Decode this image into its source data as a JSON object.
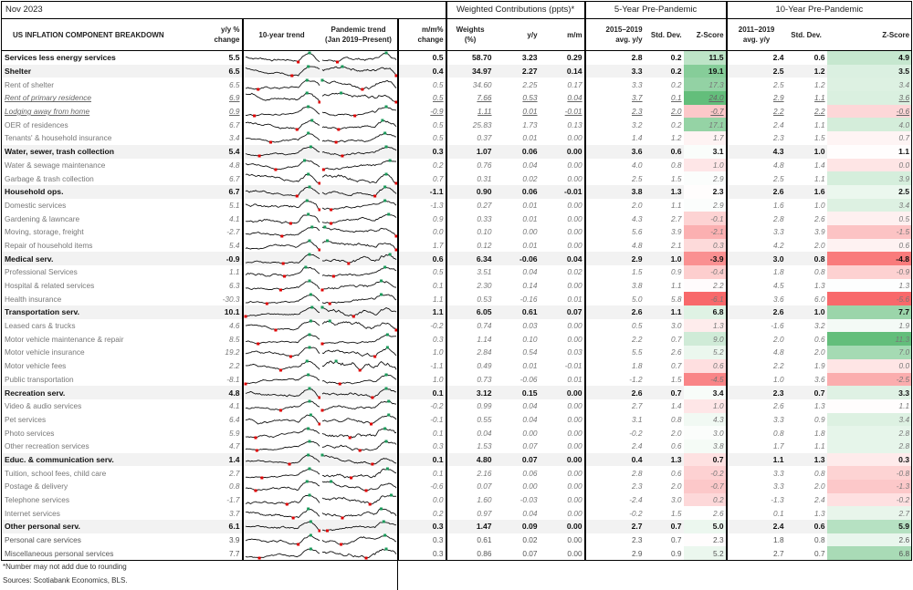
{
  "period": "Nov 2023",
  "headers": {
    "title": "US INFLATION COMPONENT BREAKDOWN",
    "yy_line1": "y/y %",
    "yy_line2": "change",
    "trend10": "10-year trend",
    "pandemic_line1": "Pandemic trend",
    "pandemic_line2": "(Jan 2019–Present)",
    "mm_line1": "m/m%",
    "mm_line2": "change",
    "weighted_group": "Weighted Contributions (ppts)*",
    "weights_line1": "Weights",
    "weights_line2": "(%)",
    "c_yy": "y/y",
    "c_mm": "m/m",
    "five_group": "5-Year Pre-Pandemic",
    "five_avg_line1": "2015–2019",
    "five_avg_line2": "avg. y/y",
    "std": "Std. Dev.",
    "z": "Z-Score",
    "ten_group": "10-Year Pre-Pandemic",
    "ten_avg_line1": "2011–2019",
    "ten_avg_line2": "avg. y/y"
  },
  "colors": {
    "z_pos": "#63be7b",
    "z_neg": "#f8696b",
    "spark_min": "#e00000",
    "spark_max": "#1a9a5a"
  },
  "rows": [
    {
      "t": "total",
      "name": "Services less energy services",
      "yy": "5.5",
      "mm": "0.5",
      "w": "58.70",
      "cy": "3.23",
      "cm": "0.29",
      "a5": "2.8",
      "s5": "0.2",
      "z5": "11.5",
      "a10": "2.4",
      "s10": "0.6",
      "z10": "4.9"
    },
    {
      "t": "cat",
      "name": "Shelter",
      "yy": "6.5",
      "mm": "0.4",
      "w": "34.97",
      "cy": "2.27",
      "cm": "0.14",
      "a5": "3.3",
      "s5": "0.2",
      "z5": "19.1",
      "a10": "2.5",
      "s10": "1.2",
      "z10": "3.5"
    },
    {
      "t": "sub",
      "name": "Rent of shelter",
      "yy": "6.5",
      "mm": "0.5",
      "w": "34.60",
      "cy": "2.25",
      "cm": "0.17",
      "a5": "3.3",
      "s5": "0.2",
      "z5": "17.3",
      "a10": "2.5",
      "s10": "1.2",
      "z10": "3.4"
    },
    {
      "t": "subu",
      "name": "Rent of  primary residence",
      "yy": "6.9",
      "mm": "0.5",
      "w": "7.66",
      "cy": "0.53",
      "cm": "0.04",
      "a5": "3.7",
      "s5": "0.1",
      "z5": "24.0",
      "a10": "2.9",
      "s10": "1.1",
      "z10": "3.6"
    },
    {
      "t": "subu",
      "name": "Lodging away from home",
      "yy": "0.9",
      "mm": "-0.9",
      "w": "1.11",
      "cy": "0.01",
      "cm": "-0.01",
      "a5": "2.3",
      "s5": "2.0",
      "z5": "-0.7",
      "a10": "2.2",
      "s10": "2.2",
      "z10": "-0.6"
    },
    {
      "t": "sub",
      "name": "OER of residences",
      "yy": "6.7",
      "mm": "0.5",
      "w": "25.83",
      "cy": "1.73",
      "cm": "0.13",
      "a5": "3.2",
      "s5": "0.2",
      "z5": "17.1",
      "a10": "2.4",
      "s10": "1.1",
      "z10": "4.0"
    },
    {
      "t": "sub",
      "name": "Tenants' & household insurance",
      "yy": "3.4",
      "mm": "0.5",
      "w": "0.37",
      "cy": "0.01",
      "cm": "0.00",
      "a5": "1.4",
      "s5": "1.2",
      "z5": "1.7",
      "a10": "2.3",
      "s10": "1.5",
      "z10": "0.7"
    },
    {
      "t": "cat",
      "name": "Water, sewer, trash collection",
      "yy": "5.4",
      "mm": "0.3",
      "w": "1.07",
      "cy": "0.06",
      "cm": "0.00",
      "a5": "3.6",
      "s5": "0.6",
      "z5": "3.1",
      "a10": "4.3",
      "s10": "1.0",
      "z10": "1.1"
    },
    {
      "t": "sub",
      "name": "Water & sewage maintenance",
      "yy": "4.8",
      "mm": "0.2",
      "w": "0.76",
      "cy": "0.04",
      "cm": "0.00",
      "a5": "4.0",
      "s5": "0.8",
      "z5": "1.0",
      "a10": "4.8",
      "s10": "1.4",
      "z10": "0.0"
    },
    {
      "t": "sub",
      "name": "Garbage & trash collection",
      "yy": "6.7",
      "mm": "0.7",
      "w": "0.31",
      "cy": "0.02",
      "cm": "0.00",
      "a5": "2.5",
      "s5": "1.5",
      "z5": "2.9",
      "a10": "2.5",
      "s10": "1.1",
      "z10": "3.9"
    },
    {
      "t": "cat",
      "name": "Household ops.",
      "yy": "6.7",
      "mm": "-1.1",
      "w": "0.90",
      "cy": "0.06",
      "cm": "-0.01",
      "a5": "3.8",
      "s5": "1.3",
      "z5": "2.3",
      "a10": "2.6",
      "s10": "1.6",
      "z10": "2.5"
    },
    {
      "t": "sub",
      "name": "Domestic services",
      "yy": "5.1",
      "mm": "-1.3",
      "w": "0.27",
      "cy": "0.01",
      "cm": "0.00",
      "a5": "2.0",
      "s5": "1.1",
      "z5": "2.9",
      "a10": "1.6",
      "s10": "1.0",
      "z10": "3.4"
    },
    {
      "t": "sub",
      "name": "Gardening & lawncare",
      "yy": "4.1",
      "mm": "0.9",
      "w": "0.33",
      "cy": "0.01",
      "cm": "0.00",
      "a5": "4.3",
      "s5": "2.7",
      "z5": "-0.1",
      "a10": "2.8",
      "s10": "2.6",
      "z10": "0.5"
    },
    {
      "t": "sub",
      "name": "Moving, storage, freight",
      "yy": "-2.7",
      "mm": "0.0",
      "w": "0.10",
      "cy": "0.00",
      "cm": "0.00",
      "a5": "5.6",
      "s5": "3.9",
      "z5": "-2.1",
      "a10": "3.3",
      "s10": "3.9",
      "z10": "-1.5"
    },
    {
      "t": "sub",
      "name": "Repair of household items",
      "yy": "5.4",
      "mm": "1.7",
      "w": "0.12",
      "cy": "0.01",
      "cm": "0.00",
      "a5": "4.8",
      "s5": "2.1",
      "z5": "0.3",
      "a10": "4.2",
      "s10": "2.0",
      "z10": "0.6"
    },
    {
      "t": "cat",
      "name": "Medical serv.",
      "yy": "-0.9",
      "mm": "0.6",
      "w": "6.34",
      "cy": "-0.06",
      "cm": "0.04",
      "a5": "2.9",
      "s5": "1.0",
      "z5": "-3.9",
      "a10": "3.0",
      "s10": "0.8",
      "z10": "-4.8"
    },
    {
      "t": "sub",
      "name": "Professional Services",
      "yy": "1.1",
      "mm": "0.5",
      "w": "3.51",
      "cy": "0.04",
      "cm": "0.02",
      "a5": "1.5",
      "s5": "0.9",
      "z5": "-0.4",
      "a10": "1.8",
      "s10": "0.8",
      "z10": "-0.9"
    },
    {
      "t": "sub",
      "name": "Hospital & related services",
      "yy": "6.3",
      "mm": "0.1",
      "w": "2.30",
      "cy": "0.14",
      "cm": "0.00",
      "a5": "3.8",
      "s5": "1.1",
      "z5": "2.2",
      "a10": "4.5",
      "s10": "1.3",
      "z10": "1.3"
    },
    {
      "t": "sub",
      "name": "Health insurance",
      "yy": "-30.3",
      "mm": "1.1",
      "w": "0.53",
      "cy": "-0.16",
      "cm": "0.01",
      "a5": "5.0",
      "s5": "5.8",
      "z5": "-6.1",
      "a10": "3.6",
      "s10": "6.0",
      "z10": "-5.6"
    },
    {
      "t": "cat",
      "name": "Transportation serv.",
      "yy": "10.1",
      "mm": "1.1",
      "w": "6.05",
      "cy": "0.61",
      "cm": "0.07",
      "a5": "2.6",
      "s5": "1.1",
      "z5": "6.8",
      "a10": "2.6",
      "s10": "1.0",
      "z10": "7.7"
    },
    {
      "t": "sub",
      "name": "Leased cars & trucks",
      "yy": "4.6",
      "mm": "-0.2",
      "w": "0.74",
      "cy": "0.03",
      "cm": "0.00",
      "a5": "0.5",
      "s5": "3.0",
      "z5": "1.3",
      "a10": "-1.6",
      "s10": "3.2",
      "z10": "1.9"
    },
    {
      "t": "sub",
      "name": "Motor vehicle maintenance & repair",
      "yy": "8.5",
      "mm": "0.3",
      "w": "1.14",
      "cy": "0.10",
      "cm": "0.00",
      "a5": "2.2",
      "s5": "0.7",
      "z5": "9.0",
      "a10": "2.0",
      "s10": "0.6",
      "z10": "11.3"
    },
    {
      "t": "sub",
      "name": "Motor vehicle insurance",
      "yy": "19.2",
      "mm": "1.0",
      "w": "2.84",
      "cy": "0.54",
      "cm": "0.03",
      "a5": "5.5",
      "s5": "2.6",
      "z5": "5.2",
      "a10": "4.8",
      "s10": "2.0",
      "z10": "7.0"
    },
    {
      "t": "sub",
      "name": "Motor vehicle fees",
      "yy": "2.2",
      "mm": "-1.1",
      "w": "0.49",
      "cy": "0.01",
      "cm": "-0.01",
      "a5": "1.8",
      "s5": "0.7",
      "z5": "0.6",
      "a10": "2.2",
      "s10": "1.9",
      "z10": "0.0"
    },
    {
      "t": "sub",
      "name": "Public transportation",
      "yy": "-8.1",
      "mm": "1.0",
      "w": "0.73",
      "cy": "-0.06",
      "cm": "0.01",
      "a5": "-1.2",
      "s5": "1.5",
      "z5": "-4.5",
      "a10": "1.0",
      "s10": "3.6",
      "z10": "-2.5"
    },
    {
      "t": "cat",
      "name": "Recreation serv.",
      "yy": "4.8",
      "mm": "0.1",
      "w": "3.12",
      "cy": "0.15",
      "cm": "0.00",
      "a5": "2.6",
      "s5": "0.7",
      "z5": "3.4",
      "a10": "2.3",
      "s10": "0.7",
      "z10": "3.3"
    },
    {
      "t": "sub",
      "name": "Video & audio services",
      "yy": "4.1",
      "mm": "-0.2",
      "w": "0.99",
      "cy": "0.04",
      "cm": "0.00",
      "a5": "2.7",
      "s5": "1.4",
      "z5": "1.0",
      "a10": "2.6",
      "s10": "1.3",
      "z10": "1.1"
    },
    {
      "t": "sub",
      "name": "Pet services",
      "yy": "6.4",
      "mm": "-0.1",
      "w": "0.55",
      "cy": "0.04",
      "cm": "0.00",
      "a5": "3.1",
      "s5": "0.8",
      "z5": "4.3",
      "a10": "3.3",
      "s10": "0.9",
      "z10": "3.4"
    },
    {
      "t": "sub",
      "name": "Photo services",
      "yy": "5.9",
      "mm": "0.1",
      "w": "0.04",
      "cy": "0.00",
      "cm": "0.00",
      "a5": "-0.2",
      "s5": "2.0",
      "z5": "3.0",
      "a10": "0.8",
      "s10": "1.8",
      "z10": "2.8"
    },
    {
      "t": "sub",
      "name": "Other recreation services",
      "yy": "4.7",
      "mm": "0.3",
      "w": "1.53",
      "cy": "0.07",
      "cm": "0.00",
      "a5": "2.4",
      "s5": "0.6",
      "z5": "3.8",
      "a10": "1.7",
      "s10": "1.1",
      "z10": "2.8"
    },
    {
      "t": "cat",
      "name": "Educ. & communication serv.",
      "yy": "1.4",
      "mm": "0.1",
      "w": "4.80",
      "cy": "0.07",
      "cm": "0.00",
      "a5": "0.4",
      "s5": "1.3",
      "z5": "0.7",
      "a10": "1.1",
      "s10": "1.3",
      "z10": "0.3"
    },
    {
      "t": "sub",
      "name": "Tuition, school fees, child care",
      "yy": "2.7",
      "mm": "0.1",
      "w": "2.16",
      "cy": "0.06",
      "cm": "0.00",
      "a5": "2.8",
      "s5": "0.6",
      "z5": "-0.2",
      "a10": "3.3",
      "s10": "0.8",
      "z10": "-0.8"
    },
    {
      "t": "sub",
      "name": "Postage & delivery",
      "yy": "0.8",
      "mm": "-0.6",
      "w": "0.07",
      "cy": "0.00",
      "cm": "0.00",
      "a5": "2.3",
      "s5": "2.0",
      "z5": "-0.7",
      "a10": "3.3",
      "s10": "2.0",
      "z10": "-1.3"
    },
    {
      "t": "sub",
      "name": "Telephone services",
      "yy": "-1.7",
      "mm": "0.0",
      "w": "1.60",
      "cy": "-0.03",
      "cm": "0.00",
      "a5": "-2.4",
      "s5": "3.0",
      "z5": "0.2",
      "a10": "-1.3",
      "s10": "2.4",
      "z10": "-0.2"
    },
    {
      "t": "sub",
      "name": "Internet services",
      "yy": "3.7",
      "mm": "0.2",
      "w": "0.97",
      "cy": "0.04",
      "cm": "0.00",
      "a5": "-0.2",
      "s5": "1.5",
      "z5": "2.6",
      "a10": "0.1",
      "s10": "1.3",
      "z10": "2.7"
    },
    {
      "t": "cat",
      "name": "Other personal serv.",
      "yy": "6.1",
      "mm": "0.3",
      "w": "1.47",
      "cy": "0.09",
      "cm": "0.00",
      "a5": "2.7",
      "s5": "0.7",
      "z5": "5.0",
      "a10": "2.4",
      "s10": "0.6",
      "z10": "5.9"
    },
    {
      "t": "plain",
      "name": "Personal care services",
      "yy": "3.9",
      "mm": "0.3",
      "w": "0.61",
      "cy": "0.02",
      "cm": "0.00",
      "a5": "2.3",
      "s5": "0.7",
      "z5": "2.3",
      "a10": "1.8",
      "s10": "0.8",
      "z10": "2.6"
    },
    {
      "t": "plain",
      "name": "Miscellaneous personal services",
      "yy": "7.7",
      "mm": "0.3",
      "w": "0.86",
      "cy": "0.07",
      "cm": "0.00",
      "a5": "2.9",
      "s5": "0.9",
      "z5": "5.2",
      "a10": "2.7",
      "s10": "0.7",
      "z10": "6.8"
    }
  ],
  "footnotes": {
    "rounding": "*Number may not add due to rounding",
    "sources": "Sources: Scotiabank Economics, BLS."
  }
}
